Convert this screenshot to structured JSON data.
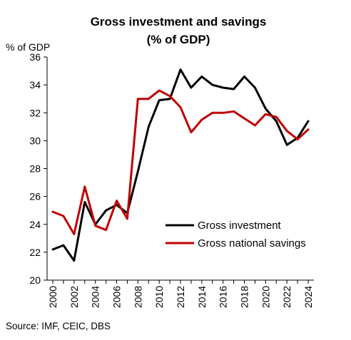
{
  "chart_data": {
    "type": "line",
    "title_lines": [
      "Gross investment and savings",
      "(% of GDP)"
    ],
    "ylabel": "% of GDP",
    "xlabel": "",
    "ylim": [
      20,
      36
    ],
    "yticks": [
      20,
      22,
      24,
      26,
      28,
      30,
      32,
      34,
      36
    ],
    "xlim": [
      2000,
      2024
    ],
    "xtick_labels": [
      "2000",
      "2002",
      "2004",
      "2006",
      "2008",
      "2010",
      "2012",
      "2014",
      "2016",
      "2018",
      "2020",
      "2022",
      "2024"
    ],
    "x": [
      2000,
      2001,
      2002,
      2003,
      2004,
      2005,
      2006,
      2007,
      2008,
      2009,
      2010,
      2011,
      2012,
      2013,
      2014,
      2015,
      2016,
      2017,
      2018,
      2019,
      2020,
      2021,
      2022,
      2023,
      2024
    ],
    "series": [
      {
        "name": "Gross investment",
        "color": "#000000",
        "values": [
          22.2,
          22.5,
          21.4,
          25.6,
          24.0,
          25.0,
          25.4,
          24.8,
          27.8,
          31.0,
          32.9,
          33.0,
          35.1,
          33.8,
          34.6,
          34.0,
          33.8,
          33.7,
          34.6,
          33.8,
          32.3,
          31.4,
          29.7,
          30.2,
          31.4
        ]
      },
      {
        "name": "Gross national savings",
        "color": "#c00000",
        "values": [
          24.9,
          24.6,
          23.3,
          26.7,
          23.9,
          23.6,
          25.7,
          24.4,
          33.0,
          33.0,
          33.6,
          33.2,
          32.4,
          30.6,
          31.5,
          32.0,
          32.0,
          32.1,
          31.6,
          31.1,
          31.9,
          31.7,
          30.7,
          30.1,
          30.8
        ]
      }
    ],
    "legend_position": "bottom-right",
    "grid": false,
    "source": "Source: IMF, CEIC, DBS"
  }
}
